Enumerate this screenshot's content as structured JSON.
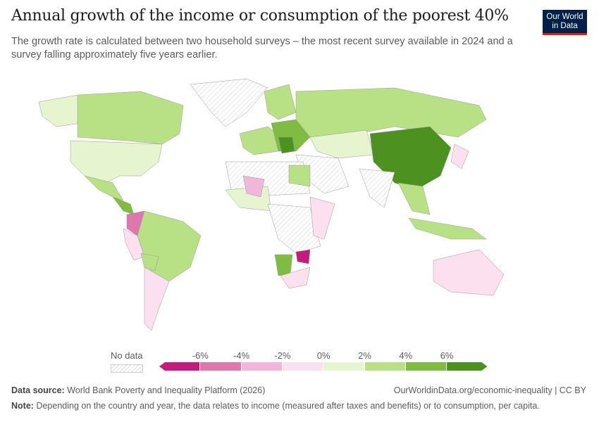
{
  "header": {
    "title": "Annual growth of the income or consumption of the poorest 40%",
    "subtitle": "The growth rate is calculated between two household surveys – the most recent survey available in 2024 and a survey falling approximately five years earlier.",
    "logo_line1": "Our World",
    "logo_line2": "in Data"
  },
  "legend": {
    "no_data": "No data",
    "ticks": [
      "-6%",
      "-4%",
      "-2%",
      "0%",
      "2%",
      "4%",
      "6%"
    ],
    "colors": [
      "#c51b7d",
      "#de77ae",
      "#f1b6da",
      "#fde0ef",
      "#e6f5d0",
      "#b8e186",
      "#7fbc41",
      "#4d9221"
    ]
  },
  "footer": {
    "source_label": "Data source:",
    "source": "World Bank Poverty and Inequality Platform (2026)",
    "url": "OurWorldinData.org/economic-inequality | CC BY",
    "note_label": "Note:",
    "note": "Depending on the country and year, the data relates to income (measured after taxes and benefits) or to consumption, per capita."
  }
}
